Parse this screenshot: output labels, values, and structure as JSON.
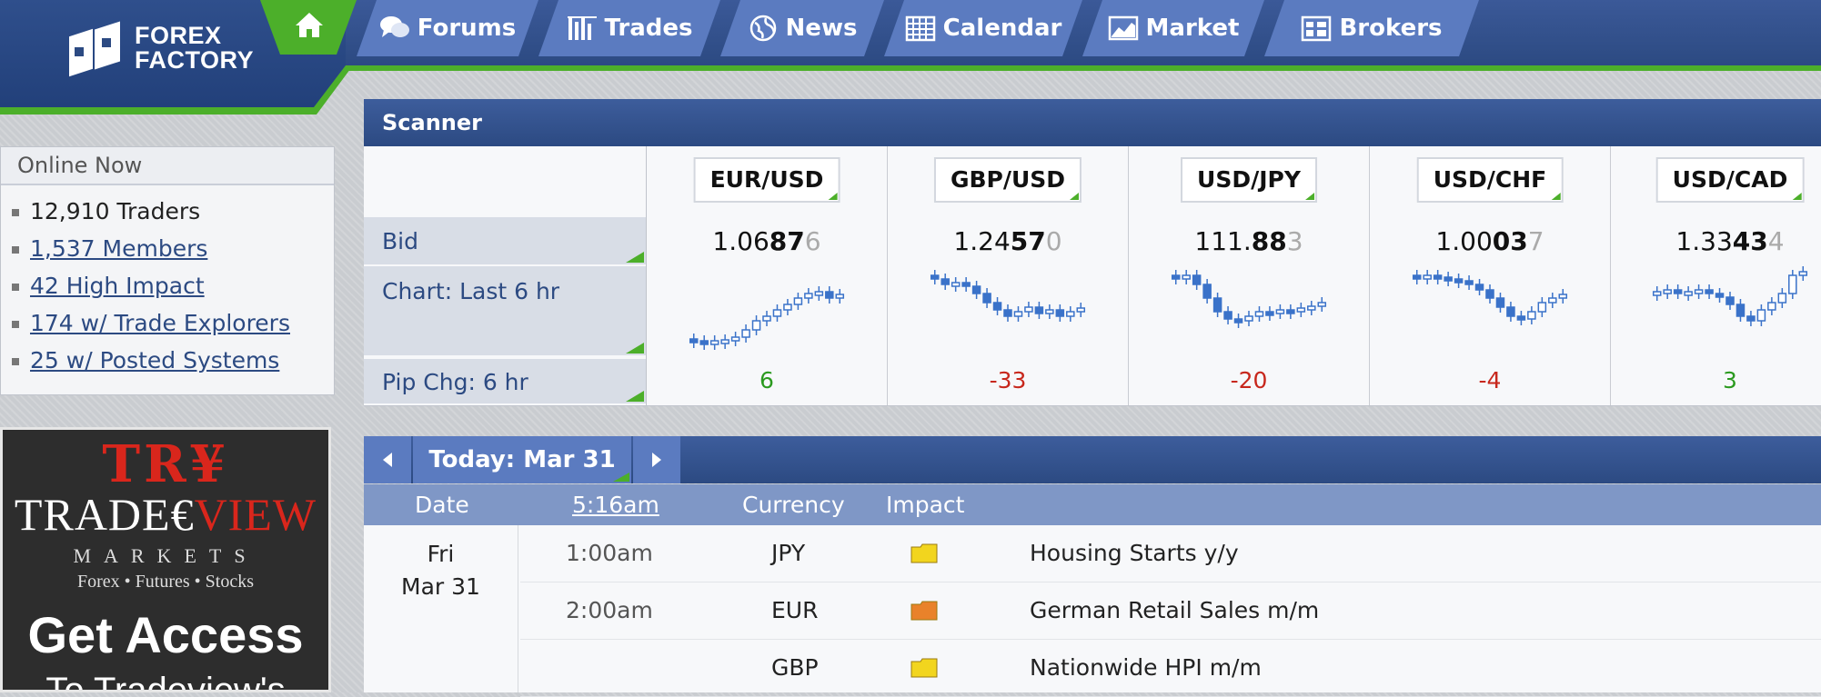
{
  "brand": {
    "line1": "FOREX",
    "line2": "FACTORY"
  },
  "nav": [
    {
      "label": "Forums",
      "icon": "forums-icon"
    },
    {
      "label": "Trades",
      "icon": "trades-icon"
    },
    {
      "label": "News",
      "icon": "news-icon"
    },
    {
      "label": "Calendar",
      "icon": "calendar-icon"
    },
    {
      "label": "Market",
      "icon": "market-icon"
    },
    {
      "label": "Brokers",
      "icon": "brokers-icon"
    }
  ],
  "online": {
    "title": "Online Now",
    "items": [
      {
        "text": "12,910 Traders",
        "link": false
      },
      {
        "text": "1,537 Members",
        "link": true
      },
      {
        "text": "42 High Impact",
        "link": true
      },
      {
        "text": "174 w/ Trade Explorers",
        "link": true
      },
      {
        "text": "25 w/ Posted Systems",
        "link": true
      }
    ]
  },
  "ad": {
    "try": "TR¥",
    "brand_left": "TRADE€",
    "brand_right": "VIEW",
    "markets": "MARKETS",
    "sub": "Forex • Futures • Stocks",
    "cta": "Get Access",
    "cta2": "To Tradeview's"
  },
  "scanner": {
    "title": "Scanner",
    "row_labels": {
      "bid": "Bid",
      "chart": "Chart: Last 6 hr",
      "pip": "Pip Chg: 6 hr"
    },
    "pairs": [
      {
        "name": "EUR/USD",
        "bid_a": "1.06",
        "bid_b": "87",
        "bid_c": "6",
        "change": "6",
        "dir": "pos"
      },
      {
        "name": "GBP/USD",
        "bid_a": "1.24",
        "bid_b": "57",
        "bid_c": "0",
        "change": "-33",
        "dir": "neg"
      },
      {
        "name": "USD/JPY",
        "bid_a": "111.",
        "bid_b": "88",
        "bid_c": "3",
        "change": "-20",
        "dir": "neg"
      },
      {
        "name": "USD/CHF",
        "bid_a": "1.00",
        "bid_b": "03",
        "bid_c": "7",
        "change": "-4",
        "dir": "neg"
      },
      {
        "name": "USD/CAD",
        "bid_a": "1.33",
        "bid_b": "43",
        "bid_c": "4",
        "change": "3",
        "dir": "pos"
      }
    ]
  },
  "calendar": {
    "today_label": "Today: Mar 31",
    "columns": {
      "date": "Date",
      "time": "5:16am",
      "currency": "Currency",
      "impact": "Impact"
    },
    "day": "Fri",
    "date": "Mar 31",
    "events": [
      {
        "time": "1:00am",
        "currency": "JPY",
        "impact_color": "#f2d51e",
        "title": "Housing Starts y/y"
      },
      {
        "time": "2:00am",
        "currency": "EUR",
        "impact_color": "#e9822a",
        "title": "German Retail Sales m/m"
      },
      {
        "time": "",
        "currency": "GBP",
        "impact_color": "#f2d51e",
        "title": "Nationwide HPI m/m"
      }
    ]
  },
  "colors": {
    "accent_green": "#4caf2a",
    "navy": "#2c4a82",
    "tab_blue": "#5b7bc0",
    "candle_blue": "#3a72c9"
  }
}
